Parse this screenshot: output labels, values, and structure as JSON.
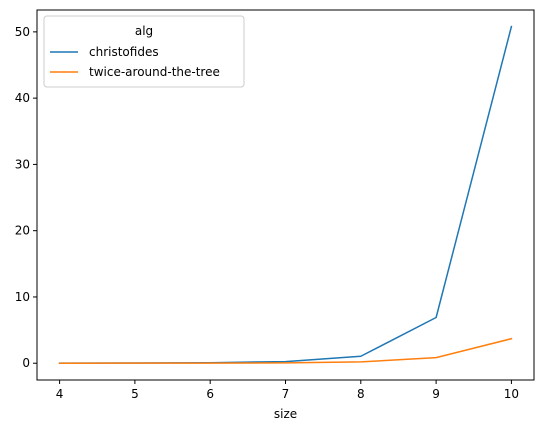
{
  "chart_data": {
    "type": "line",
    "xlabel": "size",
    "ylabel": "",
    "x": [
      4,
      5,
      6,
      7,
      8,
      9,
      10
    ],
    "xlim": [
      3.7,
      10.3
    ],
    "ylim": [
      -2.53,
      53.3
    ],
    "xticks": [
      4,
      5,
      6,
      7,
      8,
      9,
      10
    ],
    "yticks": [
      0,
      10,
      20,
      30,
      40,
      50
    ],
    "series": [
      {
        "name": "christofides",
        "color": "#1f77b4",
        "values": [
          0.01,
          0.03,
          0.08,
          0.25,
          1.05,
          6.9,
          50.8
        ]
      },
      {
        "name": "twice-around-the-tree",
        "color": "#ff7f0e",
        "values": [
          0.0,
          0.01,
          0.02,
          0.05,
          0.2,
          0.85,
          3.7
        ]
      }
    ],
    "legend": {
      "title": "alg",
      "position": "top-left"
    },
    "grid": false
  }
}
